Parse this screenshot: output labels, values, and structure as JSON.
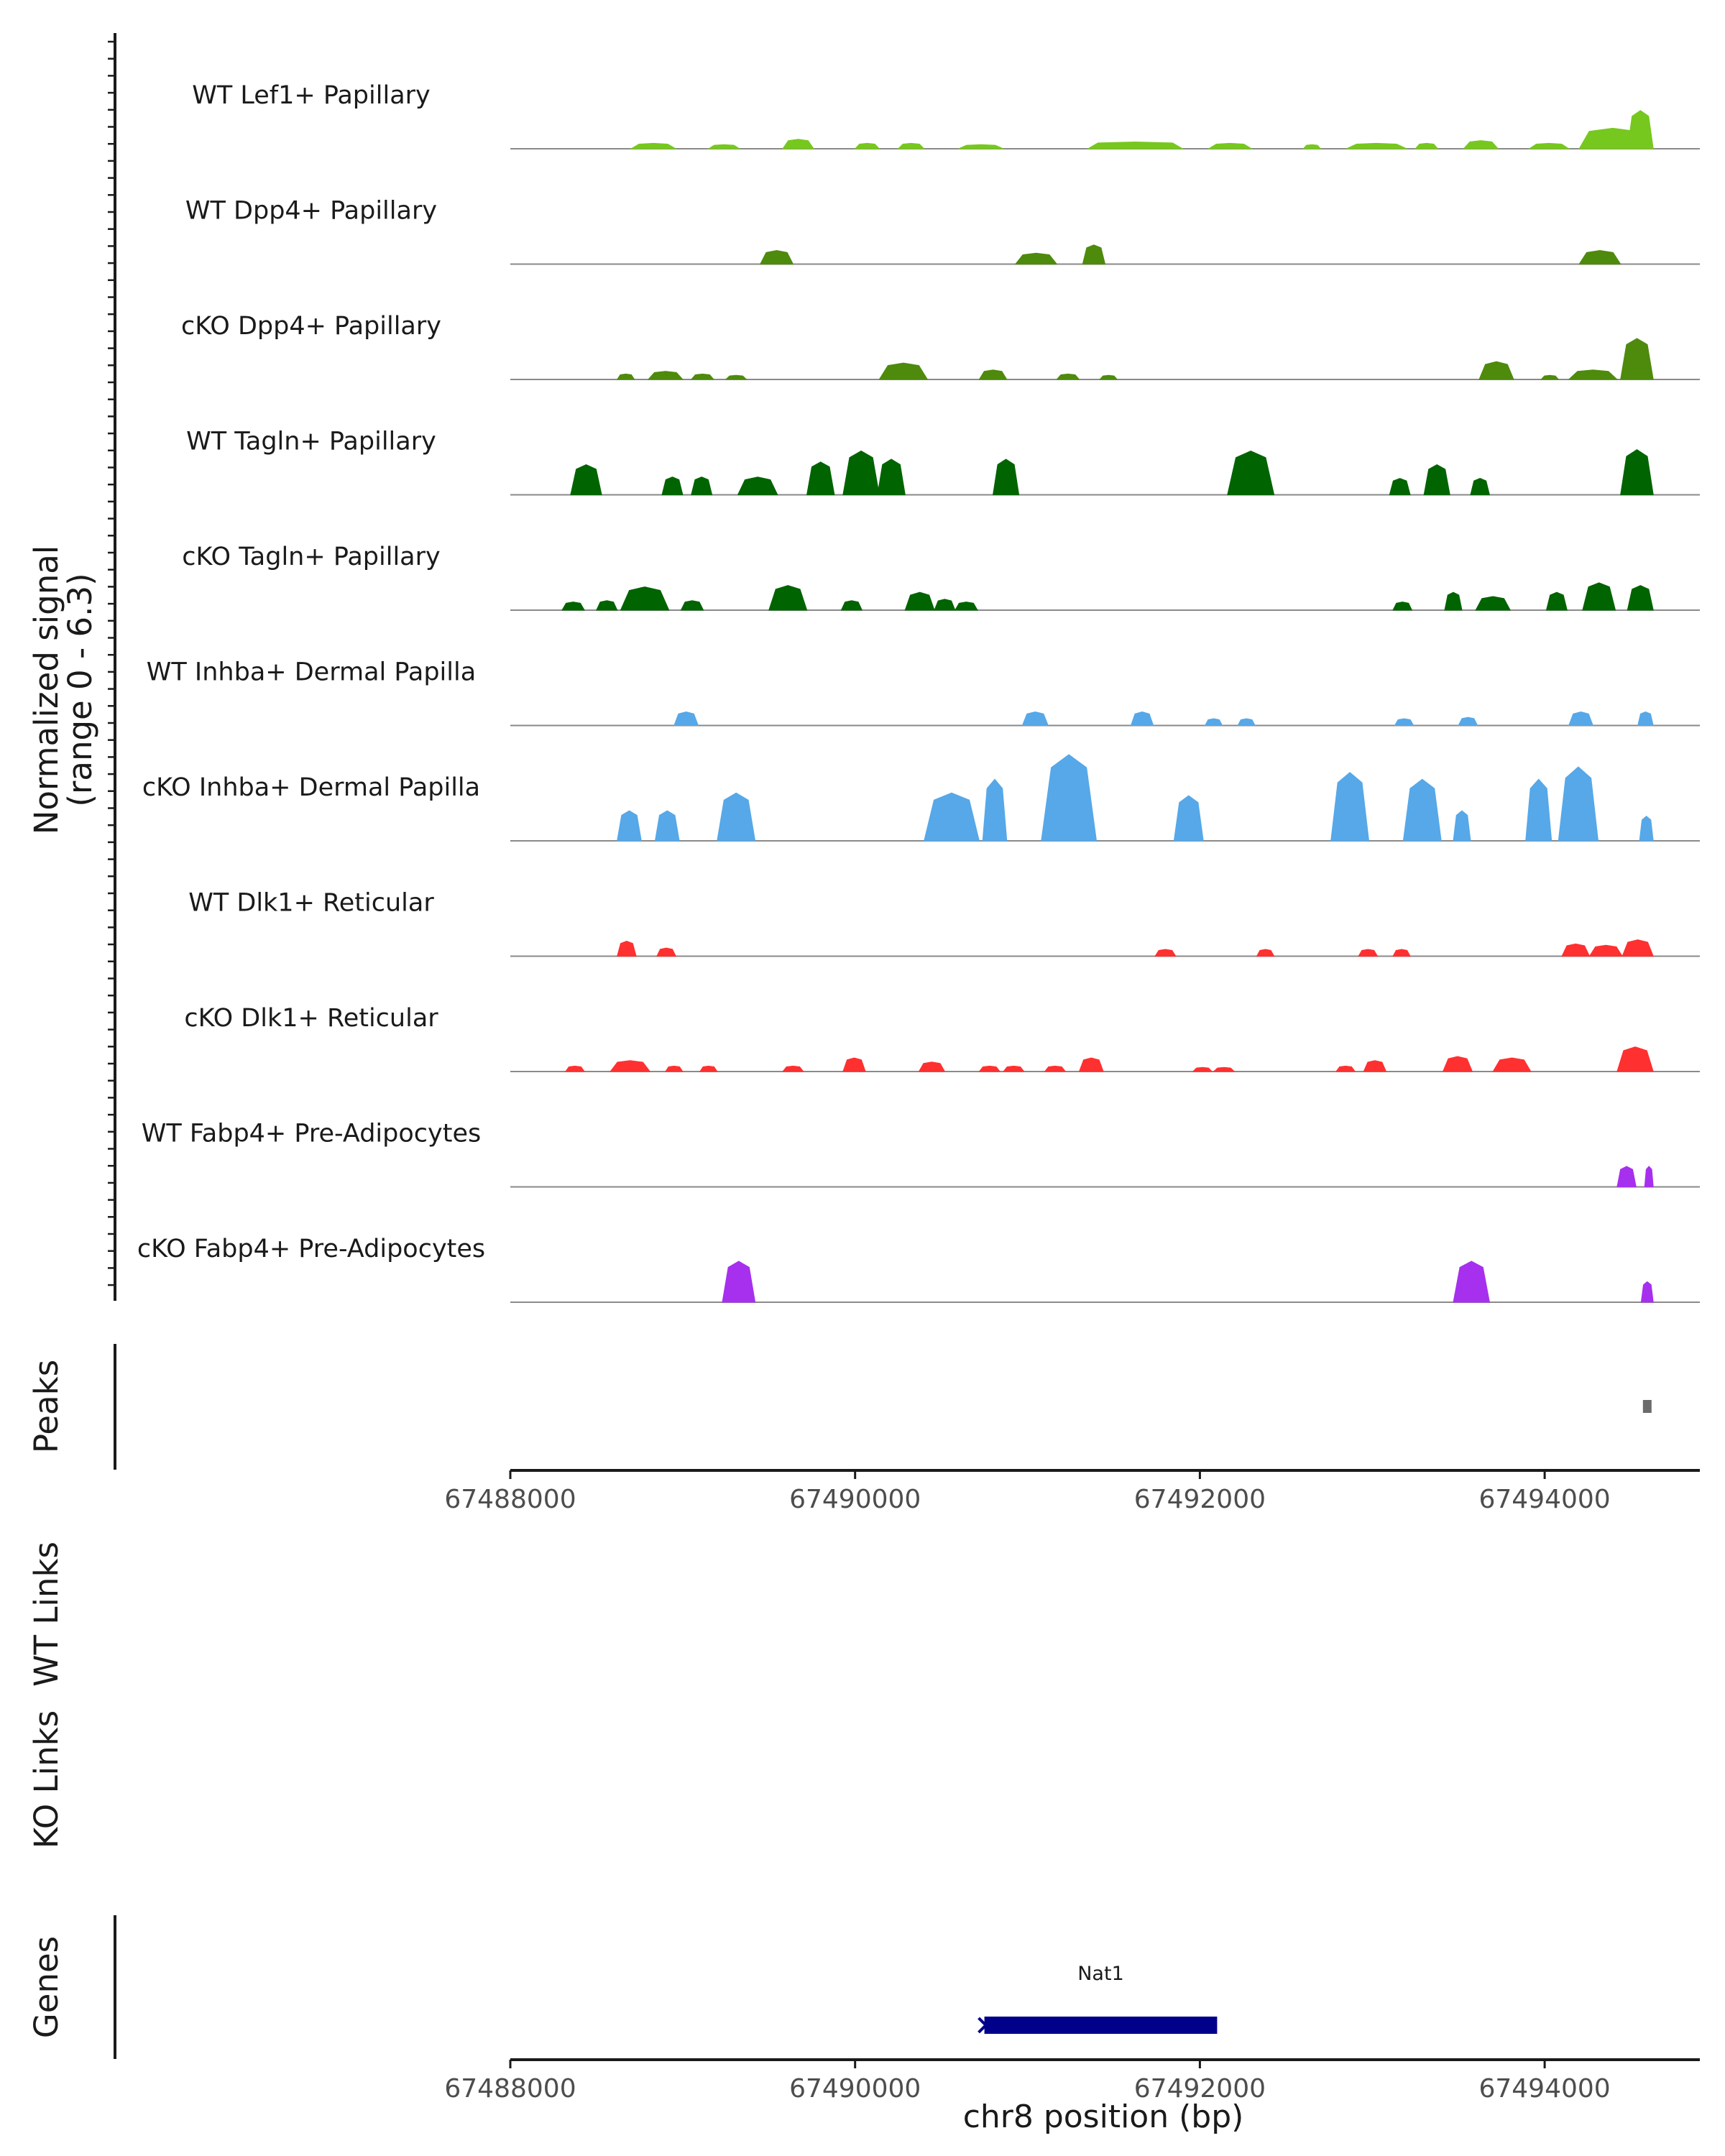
{
  "chart_data": {
    "type": "area",
    "title": "",
    "xlabel": "chr8 position (bp)",
    "ylabel_line1": "Normalized signal",
    "ylabel_line2": "(range 0 - 6.3)",
    "yrange": [
      0,
      6.3
    ],
    "xlim": [
      67488000,
      67494900
    ],
    "x_ticks": [
      67488000,
      67490000,
      67492000,
      67494000
    ],
    "x_tick_labels": [
      "67488000",
      "67490000",
      "67492000",
      "67494000"
    ],
    "panels": {
      "peaks": "Peaks",
      "wt_links": "WT Links",
      "ko_links": "KO Links",
      "genes": "Genes"
    },
    "tracks": [
      {
        "name": "WT Lef1+ Papillary",
        "color": "#76C81E",
        "peaks": [
          [
            67488700,
            67488960,
            0.4
          ],
          [
            67489150,
            67489330,
            0.3
          ],
          [
            67489580,
            67489760,
            0.7
          ],
          [
            67490000,
            67490140,
            0.4
          ],
          [
            67490250,
            67490400,
            0.4
          ],
          [
            67490600,
            67490860,
            0.3
          ],
          [
            67491350,
            67491900,
            0.5
          ],
          [
            67492050,
            67492300,
            0.4
          ],
          [
            67492600,
            67492700,
            0.3
          ],
          [
            67492850,
            67493200,
            0.4
          ],
          [
            67493250,
            67493380,
            0.4
          ],
          [
            67493530,
            67493730,
            0.6
          ],
          [
            67493910,
            67494140,
            0.4
          ],
          [
            67494200,
            67494590,
            1.5
          ],
          [
            67494480,
            67494630,
            2.8
          ]
        ]
      },
      {
        "name": "WT Dpp4+ Papillary",
        "color": "#4E8A0C",
        "peaks": [
          [
            67489450,
            67489640,
            1.0
          ],
          [
            67490930,
            67491170,
            0.8
          ],
          [
            67491320,
            67491450,
            1.4
          ],
          [
            67494200,
            67494440,
            1.0
          ]
        ]
      },
      {
        "name": "cKO Dpp4+ Papillary",
        "color": "#4E8A0C",
        "peaks": [
          [
            67488620,
            67488720,
            0.4
          ],
          [
            67488800,
            67489000,
            0.6
          ],
          [
            67489050,
            67489180,
            0.4
          ],
          [
            67489250,
            67489370,
            0.3
          ],
          [
            67490140,
            67490420,
            1.2
          ],
          [
            67490720,
            67490880,
            0.7
          ],
          [
            67491170,
            67491300,
            0.4
          ],
          [
            67491420,
            67491520,
            0.3
          ],
          [
            67493620,
            67493820,
            1.3
          ],
          [
            67493980,
            67494080,
            0.3
          ],
          [
            67494140,
            67494420,
            0.7
          ],
          [
            67494440,
            67494630,
            3.0
          ]
        ]
      },
      {
        "name": "WT Tagln+ Papillary",
        "color": "#006400",
        "peaks": [
          [
            67488350,
            67488530,
            2.2
          ],
          [
            67488880,
            67489000,
            1.3
          ],
          [
            67489050,
            67489170,
            1.3
          ],
          [
            67489320,
            67489550,
            1.3
          ],
          [
            67489720,
            67489880,
            2.4
          ],
          [
            67489930,
            67490140,
            3.2
          ],
          [
            67490130,
            67490290,
            2.6
          ],
          [
            67490800,
            67490950,
            2.6
          ],
          [
            67492160,
            67492430,
            3.2
          ],
          [
            67493100,
            67493220,
            1.2
          ],
          [
            67493300,
            67493450,
            2.2
          ],
          [
            67493570,
            67493680,
            1.2
          ],
          [
            67494440,
            67494630,
            3.3
          ]
        ]
      },
      {
        "name": "cKO Tagln+ Papillary",
        "color": "#006400",
        "peaks": [
          [
            67488300,
            67488430,
            0.6
          ],
          [
            67488500,
            67488620,
            0.7
          ],
          [
            67488640,
            67488920,
            1.7
          ],
          [
            67488990,
            67489120,
            0.7
          ],
          [
            67489500,
            67489720,
            1.8
          ],
          [
            67489920,
            67490040,
            0.7
          ],
          [
            67490290,
            67490460,
            1.3
          ],
          [
            67490460,
            67490580,
            0.8
          ],
          [
            67490580,
            67490710,
            0.6
          ],
          [
            67493120,
            67493230,
            0.6
          ],
          [
            67493420,
            67493520,
            1.3
          ],
          [
            67493600,
            67493800,
            1.0
          ],
          [
            67494010,
            67494130,
            1.3
          ],
          [
            67494220,
            67494410,
            2.0
          ],
          [
            67494480,
            67494630,
            1.8
          ]
        ]
      },
      {
        "name": "WT Inhba+ Dermal Papilla",
        "color": "#56A8E8",
        "peaks": [
          [
            67488950,
            67489090,
            1.0
          ],
          [
            67490970,
            67491120,
            1.0
          ],
          [
            67491600,
            67491730,
            1.0
          ],
          [
            67492030,
            67492130,
            0.5
          ],
          [
            67492220,
            67492320,
            0.5
          ],
          [
            67493130,
            67493240,
            0.5
          ],
          [
            67493500,
            67493610,
            0.6
          ],
          [
            67494140,
            67494280,
            1.0
          ],
          [
            67494540,
            67494630,
            1.0
          ]
        ]
      },
      {
        "name": "cKO Inhba+ Dermal Papilla",
        "color": "#56A8E8",
        "peaks": [
          [
            67488620,
            67488760,
            2.2
          ],
          [
            67488840,
            67488980,
            2.2
          ],
          [
            67489200,
            67489420,
            3.5
          ],
          [
            67490400,
            67490720,
            3.5
          ],
          [
            67490740,
            67490880,
            4.5
          ],
          [
            67491080,
            67491400,
            6.3
          ],
          [
            67491850,
            67492020,
            3.3
          ],
          [
            67492760,
            67492980,
            5.0
          ],
          [
            67493180,
            67493400,
            4.5
          ],
          [
            67493470,
            67493570,
            2.2
          ],
          [
            67493890,
            67494040,
            4.5
          ],
          [
            67494080,
            67494310,
            5.4
          ],
          [
            67494550,
            67494630,
            1.8
          ]
        ]
      },
      {
        "name": "WT Dlk1+ Reticular",
        "color": "#FF3030",
        "peaks": [
          [
            67488620,
            67488730,
            1.1
          ],
          [
            67488850,
            67488960,
            0.6
          ],
          [
            67491740,
            67491860,
            0.5
          ],
          [
            67492330,
            67492430,
            0.5
          ],
          [
            67492920,
            67493030,
            0.5
          ],
          [
            67493120,
            67493220,
            0.5
          ],
          [
            67494100,
            67494260,
            0.9
          ],
          [
            67494260,
            67494450,
            0.8
          ],
          [
            67494450,
            67494630,
            1.2
          ]
        ]
      },
      {
        "name": "cKO Dlk1+ Reticular",
        "color": "#FF3030",
        "peaks": [
          [
            67488320,
            67488430,
            0.4
          ],
          [
            67488580,
            67488810,
            0.8
          ],
          [
            67488900,
            67489000,
            0.4
          ],
          [
            67489100,
            67489200,
            0.4
          ],
          [
            67489580,
            67489700,
            0.4
          ],
          [
            67489930,
            67490060,
            1.0
          ],
          [
            67490370,
            67490520,
            0.7
          ],
          [
            67490720,
            67490840,
            0.4
          ],
          [
            67490860,
            67490980,
            0.4
          ],
          [
            67491100,
            67491220,
            0.4
          ],
          [
            67491300,
            67491440,
            1.0
          ],
          [
            67491960,
            67492070,
            0.3
          ],
          [
            67492080,
            67492200,
            0.3
          ],
          [
            67492790,
            67492900,
            0.4
          ],
          [
            67492950,
            67493080,
            0.8
          ],
          [
            67493410,
            67493580,
            1.1
          ],
          [
            67493700,
            67493920,
            1.0
          ],
          [
            67494420,
            67494630,
            1.8
          ]
        ]
      },
      {
        "name": "WT Fabp4+ Pre-Adipocytes",
        "color": "#A630EE",
        "peaks": [
          [
            67494420,
            67494530,
            1.5
          ],
          [
            67494580,
            67494630,
            1.5
          ]
        ]
      },
      {
        "name": "cKO Fabp4+ Pre-Adipocytes",
        "color": "#A630EE",
        "peaks": [
          [
            67489230,
            67489420,
            3.0
          ],
          [
            67493470,
            67493680,
            3.0
          ],
          [
            67494560,
            67494630,
            1.5
          ]
        ]
      }
    ],
    "peak_regions": [
      [
        67494570,
        67494620
      ]
    ],
    "genes": [
      {
        "name": "Nat1",
        "start": 67490750,
        "end": 67492100,
        "strand": "-",
        "color": "#00008B"
      }
    ]
  }
}
